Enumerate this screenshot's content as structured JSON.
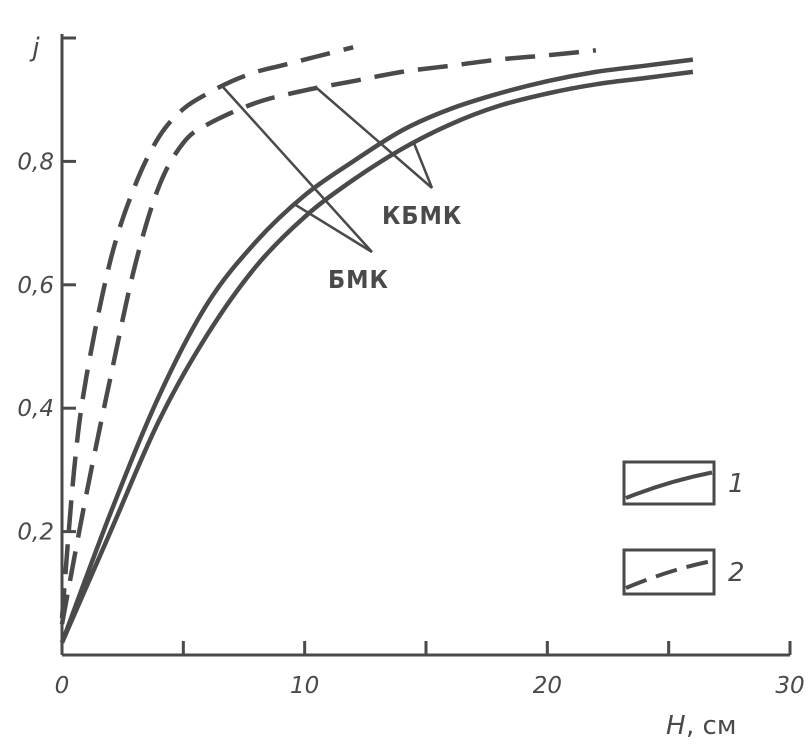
{
  "chart_data": {
    "type": "line",
    "ylabel": "j",
    "xlabel": "H",
    "xlabel_unit": ", см",
    "xlim": [
      0,
      30
    ],
    "ylim": [
      0,
      1.0
    ],
    "x_ticks": [
      0,
      5,
      10,
      15,
      20,
      25,
      30
    ],
    "x_tick_labels": [
      "0",
      "",
      "10",
      "",
      "20",
      "",
      "30"
    ],
    "y_ticks": [
      0.2,
      0.4,
      0.6,
      0.8,
      1.0
    ],
    "y_tick_labels": [
      "0,2",
      "0,4",
      "0,6",
      "0,8",
      ""
    ],
    "grid": false,
    "legend_position": "right",
    "legend": [
      {
        "label": "1",
        "style": "solid"
      },
      {
        "label": "2",
        "style": "dashed"
      }
    ],
    "annotations": [
      {
        "text": "КБМК",
        "series": [
          "kbmk-solid",
          "kbmk-dashed"
        ]
      },
      {
        "text": "БМК",
        "series": [
          "bmk-solid",
          "bmk-dashed"
        ]
      }
    ],
    "series": [
      {
        "id": "bmk-dashed",
        "group": "БМК",
        "style": "dashed",
        "x": [
          0,
          0.5,
          1,
          2,
          3,
          4,
          5,
          6,
          7,
          8,
          9,
          10,
          11,
          12
        ],
        "y": [
          0.06,
          0.3,
          0.45,
          0.64,
          0.76,
          0.84,
          0.885,
          0.91,
          0.93,
          0.945,
          0.955,
          0.965,
          0.975,
          0.985
        ]
      },
      {
        "id": "kbmk-dashed",
        "group": "КБМК",
        "style": "dashed",
        "x": [
          0,
          1,
          2,
          3,
          4,
          5,
          6,
          8,
          10,
          12,
          14,
          16,
          18,
          20,
          22
        ],
        "y": [
          0.05,
          0.26,
          0.45,
          0.63,
          0.76,
          0.83,
          0.86,
          0.895,
          0.915,
          0.93,
          0.945,
          0.955,
          0.965,
          0.972,
          0.98
        ]
      },
      {
        "id": "bmk-solid",
        "group": "БМК",
        "style": "solid",
        "x": [
          0,
          2,
          4,
          6,
          8,
          10,
          12,
          14,
          16,
          18,
          20,
          22,
          24,
          26
        ],
        "y": [
          0.02,
          0.23,
          0.42,
          0.57,
          0.67,
          0.745,
          0.8,
          0.85,
          0.885,
          0.91,
          0.93,
          0.945,
          0.955,
          0.965
        ]
      },
      {
        "id": "kbmk-solid",
        "group": "КБМК",
        "style": "solid",
        "x": [
          0,
          2,
          4,
          6,
          8,
          10,
          12,
          14,
          16,
          18,
          20,
          22,
          24,
          26
        ],
        "y": [
          0.02,
          0.2,
          0.38,
          0.52,
          0.63,
          0.71,
          0.77,
          0.82,
          0.86,
          0.89,
          0.91,
          0.925,
          0.935,
          0.945
        ]
      }
    ]
  }
}
